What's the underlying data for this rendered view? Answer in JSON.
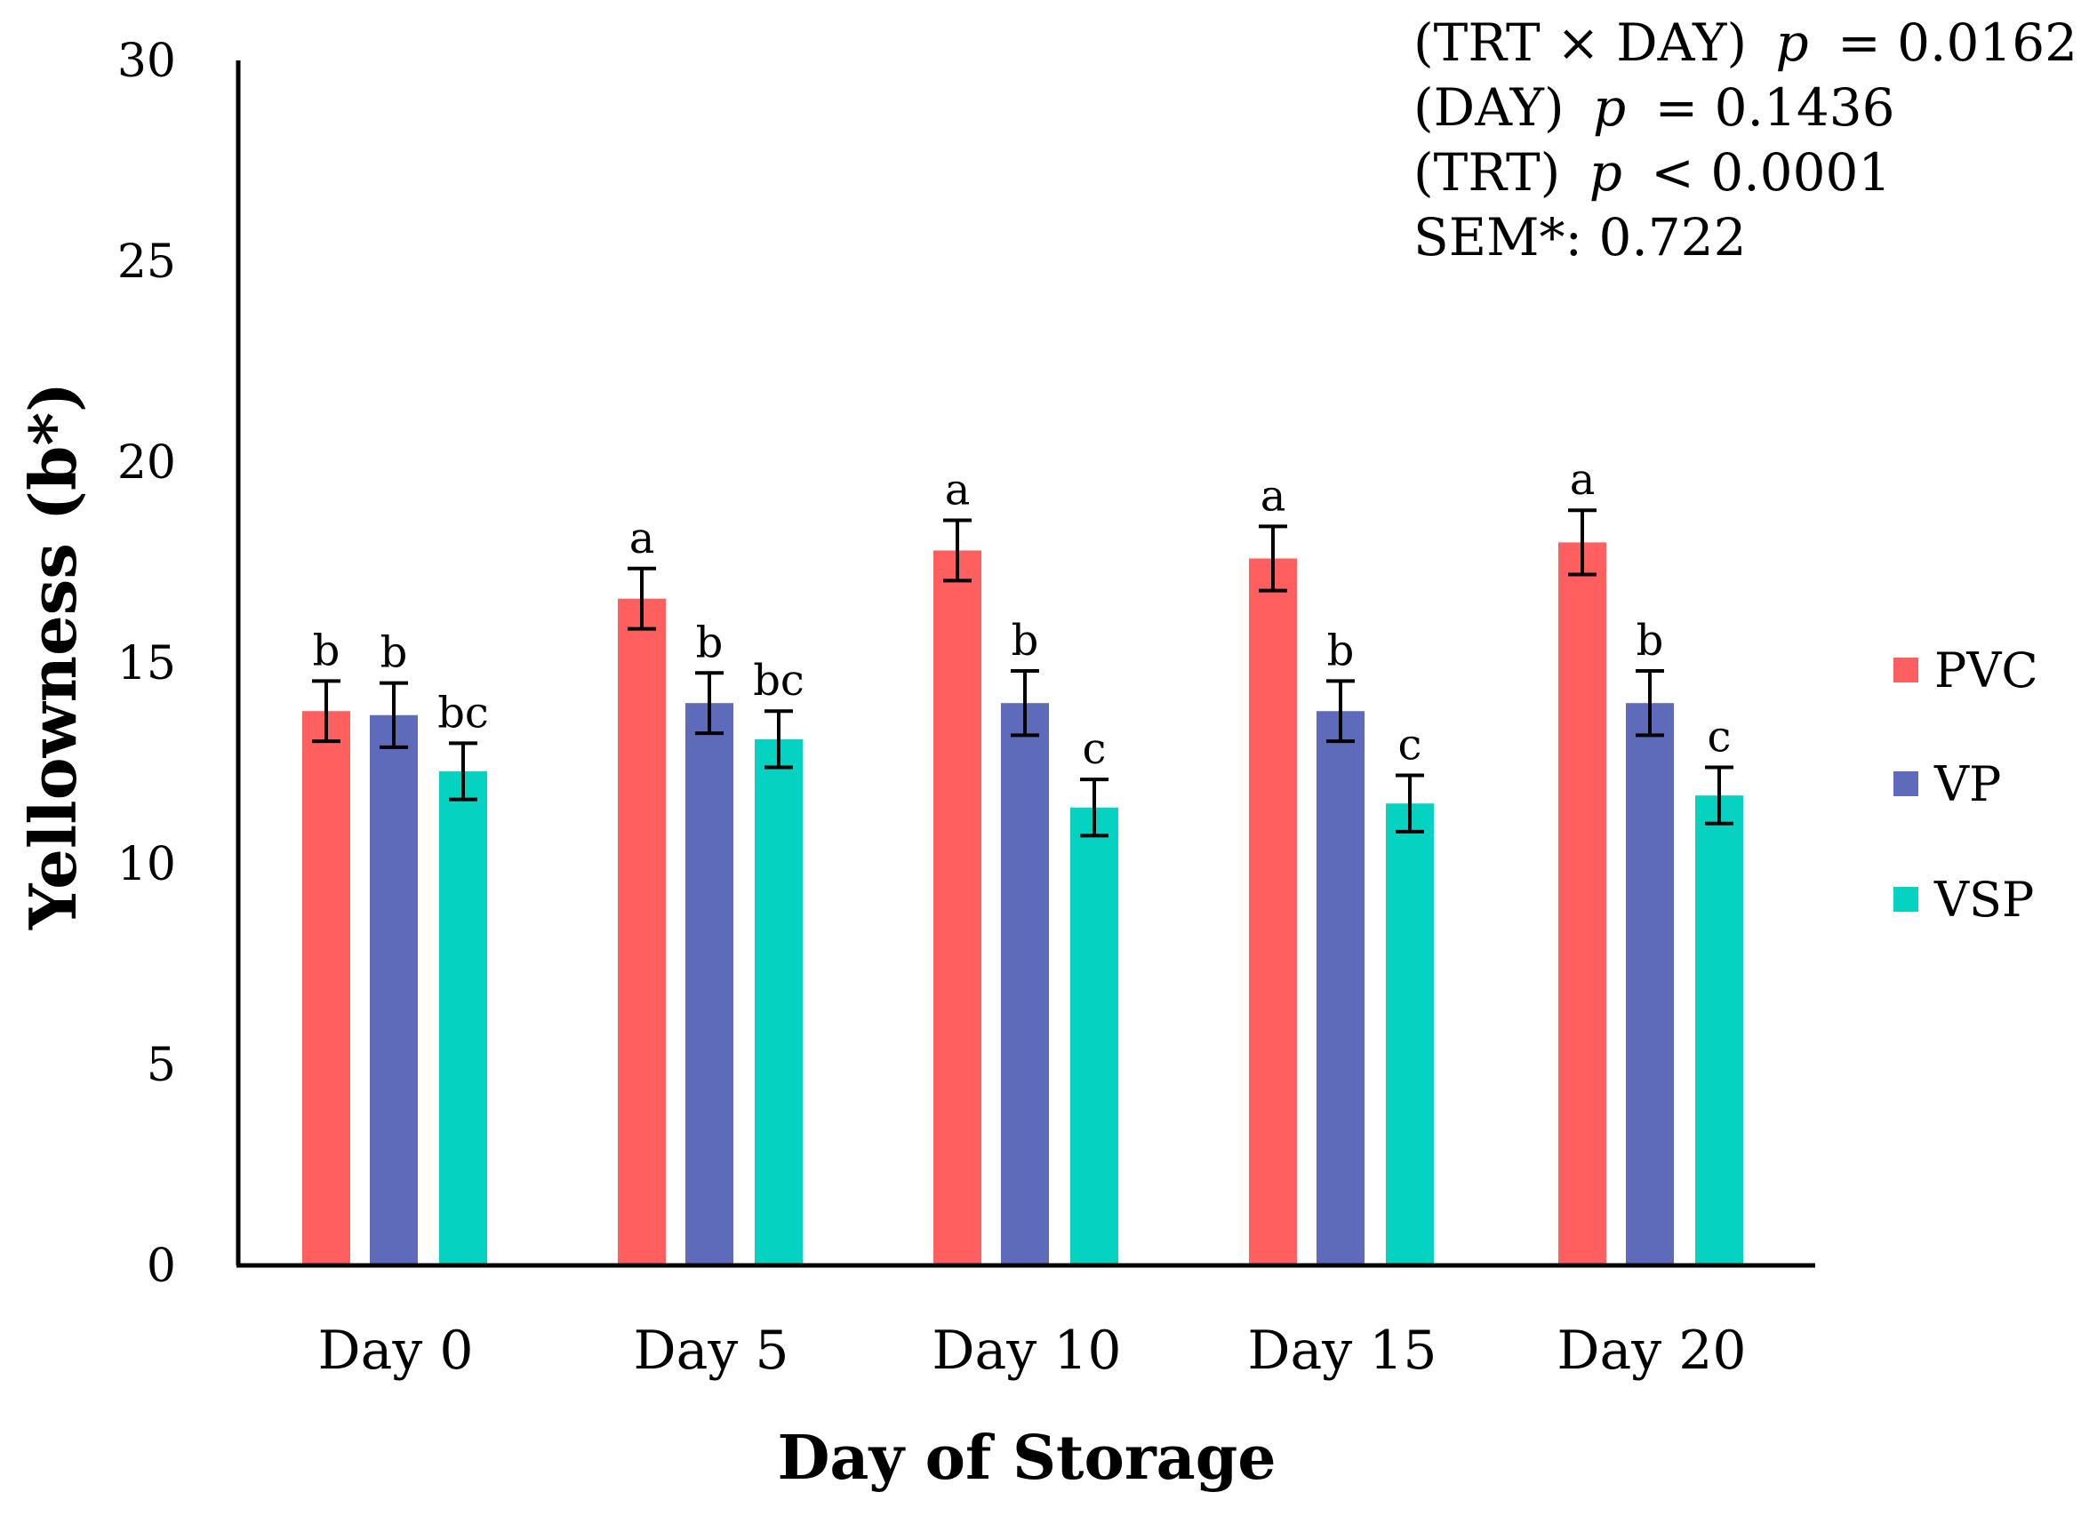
{
  "chart_data": {
    "type": "bar",
    "title": "",
    "xlabel": "Day of Storage",
    "ylabel": "Yellowness (b*)",
    "ylim": [
      0,
      30
    ],
    "yticks": [
      0,
      5,
      10,
      15,
      20,
      25,
      30
    ],
    "grid": false,
    "legend_position": "right",
    "categories": [
      "Day 0",
      "Day 5",
      "Day 10",
      "Day 15",
      "Day 20"
    ],
    "series": [
      {
        "name": "PVC",
        "color": "#FF5F5F",
        "values": [
          13.8,
          16.6,
          17.8,
          17.6,
          18.0
        ],
        "errors": [
          0.75,
          0.75,
          0.75,
          0.8,
          0.8
        ],
        "letters": [
          "b",
          "a",
          "a",
          "a",
          "a"
        ]
      },
      {
        "name": "VP",
        "color": "#5D6BBA",
        "values": [
          13.7,
          14.0,
          14.0,
          13.8,
          14.0
        ],
        "errors": [
          0.8,
          0.75,
          0.8,
          0.75,
          0.8
        ],
        "letters": [
          "b",
          "b",
          "b",
          "b",
          "b"
        ]
      },
      {
        "name": "VSP",
        "color": "#06D2C2",
        "values": [
          12.3,
          13.1,
          11.4,
          11.5,
          11.7
        ],
        "errors": [
          0.7,
          0.7,
          0.7,
          0.7,
          0.7
        ],
        "letters": [
          "bc",
          "bc",
          "c",
          "c",
          "c"
        ]
      }
    ],
    "annotations": {
      "line1_prefix": "(TRT × DAY)",
      "line1_p": "p",
      "line1_value": "= 0.0162",
      "line2_prefix": "(DAY)",
      "line2_p": "p",
      "line2_value": "= 0.1436",
      "line3_prefix": "(TRT)",
      "line3_p": "p",
      "line3_value": "< 0.0001",
      "line4": "SEM*: 0.722"
    }
  }
}
